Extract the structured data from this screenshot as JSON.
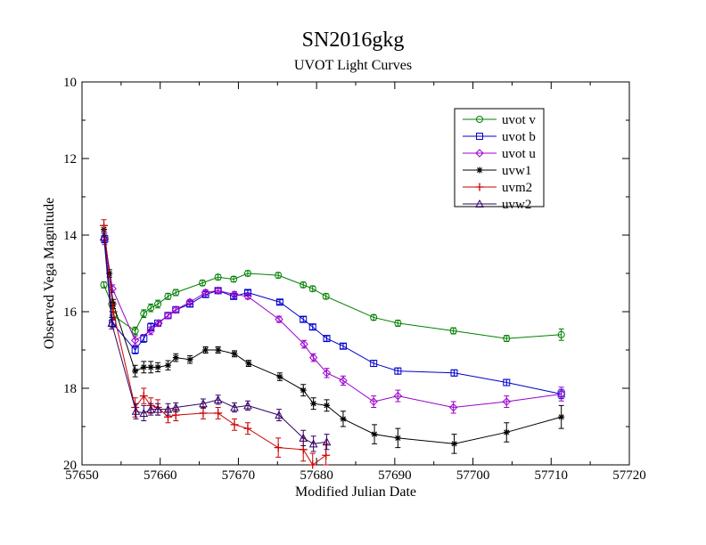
{
  "chart_data": {
    "type": "line",
    "title": "SN2016gkg",
    "subtitle": "UVOT Light Curves",
    "xlabel": "Modified Julian Date",
    "ylabel": "Observed Vega Magnitude",
    "xlim": [
      57650,
      57720
    ],
    "ylim": [
      20,
      10
    ],
    "y_inverted": true,
    "x_ticks": [
      "57650",
      "57660",
      "57670",
      "57680",
      "57690",
      "57700",
      "57710",
      "57720"
    ],
    "y_ticks": [
      "10",
      "12",
      "14",
      "16",
      "18",
      "20"
    ],
    "grid": false,
    "legend_position": "top-right",
    "series": [
      {
        "name": "uvot v",
        "color": "#008000",
        "marker": "circle",
        "points": [
          [
            57652.8,
            15.3
          ],
          [
            57653.8,
            15.8
          ],
          [
            57654.0,
            16.1
          ],
          [
            57656.8,
            16.5
          ],
          [
            57657.9,
            16.05
          ],
          [
            57658.8,
            15.9
          ],
          [
            57659.7,
            15.8
          ],
          [
            57661.0,
            15.6
          ],
          [
            57662.0,
            15.5
          ],
          [
            57665.4,
            15.25
          ],
          [
            57667.4,
            15.1
          ],
          [
            57669.4,
            15.15
          ],
          [
            57671.2,
            15.0
          ],
          [
            57675.1,
            15.05
          ],
          [
            57678.3,
            15.3
          ],
          [
            57679.5,
            15.4
          ],
          [
            57681.2,
            15.6
          ],
          [
            57687.3,
            16.15
          ],
          [
            57690.4,
            16.3
          ],
          [
            57697.5,
            16.5
          ],
          [
            57704.3,
            16.7
          ],
          [
            57711.3,
            16.6
          ]
        ],
        "err": [
          0.08,
          0.08,
          0.08,
          0.1,
          0.1,
          0.1,
          0.1,
          0.08,
          0.08,
          0.07,
          0.07,
          0.07,
          0.07,
          0.07,
          0.07,
          0.07,
          0.07,
          0.07,
          0.08,
          0.08,
          0.08,
          0.15
        ]
      },
      {
        "name": "uvot b",
        "color": "#0000cc",
        "marker": "square",
        "points": [
          [
            57652.9,
            14.1
          ],
          [
            57653.9,
            16.3
          ],
          [
            57656.8,
            17.0
          ],
          [
            57657.9,
            16.7
          ],
          [
            57658.8,
            16.4
          ],
          [
            57659.7,
            16.3
          ],
          [
            57661.0,
            16.1
          ],
          [
            57662.0,
            15.95
          ],
          [
            57663.8,
            15.8
          ],
          [
            57665.8,
            15.55
          ],
          [
            57667.4,
            15.45
          ],
          [
            57669.4,
            15.6
          ],
          [
            57671.2,
            15.5
          ],
          [
            57675.3,
            15.75
          ],
          [
            57678.3,
            16.2
          ],
          [
            57679.5,
            16.4
          ],
          [
            57681.3,
            16.7
          ],
          [
            57683.4,
            16.9
          ],
          [
            57687.3,
            17.35
          ],
          [
            57690.4,
            17.55
          ],
          [
            57697.6,
            17.6
          ],
          [
            57704.3,
            17.85
          ],
          [
            57711.3,
            18.15
          ]
        ],
        "err": [
          0.1,
          0.1,
          0.1,
          0.1,
          0.1,
          0.08,
          0.08,
          0.08,
          0.07,
          0.07,
          0.06,
          0.06,
          0.06,
          0.06,
          0.07,
          0.07,
          0.07,
          0.07,
          0.08,
          0.08,
          0.08,
          0.08,
          0.12
        ]
      },
      {
        "name": "uvot u",
        "color": "#9900cc",
        "marker": "diamond",
        "points": [
          [
            57652.9,
            14.1
          ],
          [
            57653.9,
            15.4
          ],
          [
            57656.8,
            16.75
          ],
          [
            57658.8,
            16.5
          ],
          [
            57659.8,
            16.3
          ],
          [
            57661.0,
            16.1
          ],
          [
            57662.0,
            15.95
          ],
          [
            57663.8,
            15.75
          ],
          [
            57665.8,
            15.5
          ],
          [
            57667.4,
            15.45
          ],
          [
            57669.5,
            15.55
          ],
          [
            57671.2,
            15.6
          ],
          [
            57675.2,
            16.2
          ],
          [
            57678.4,
            16.85
          ],
          [
            57679.6,
            17.2
          ],
          [
            57681.3,
            17.6
          ],
          [
            57683.4,
            17.8
          ],
          [
            57687.3,
            18.35
          ],
          [
            57690.4,
            18.2
          ],
          [
            57697.5,
            18.5
          ],
          [
            57704.3,
            18.35
          ],
          [
            57711.3,
            18.15
          ]
        ],
        "err": [
          0.15,
          0.1,
          0.12,
          0.1,
          0.08,
          0.08,
          0.08,
          0.07,
          0.07,
          0.07,
          0.07,
          0.07,
          0.08,
          0.1,
          0.1,
          0.12,
          0.12,
          0.15,
          0.15,
          0.15,
          0.15,
          0.18
        ]
      },
      {
        "name": "uvw1",
        "color": "#000000",
        "marker": "asterisk",
        "points": [
          [
            57652.8,
            13.85
          ],
          [
            57653.5,
            15.0
          ],
          [
            57654.0,
            15.8
          ],
          [
            57656.8,
            17.55
          ],
          [
            57657.9,
            17.45
          ],
          [
            57658.8,
            17.45
          ],
          [
            57659.7,
            17.45
          ],
          [
            57661.0,
            17.4
          ],
          [
            57662.0,
            17.2
          ],
          [
            57663.8,
            17.25
          ],
          [
            57665.8,
            17.0
          ],
          [
            57667.4,
            17.0
          ],
          [
            57669.5,
            17.1
          ],
          [
            57671.3,
            17.35
          ],
          [
            57675.3,
            17.7
          ],
          [
            57678.3,
            18.05
          ],
          [
            57679.6,
            18.4
          ],
          [
            57681.3,
            18.45
          ],
          [
            57683.4,
            18.8
          ],
          [
            57687.4,
            19.2
          ],
          [
            57690.4,
            19.3
          ],
          [
            57697.6,
            19.45
          ],
          [
            57704.3,
            19.15
          ],
          [
            57711.3,
            18.75
          ]
        ],
        "err": [
          0.1,
          0.1,
          0.12,
          0.15,
          0.15,
          0.15,
          0.12,
          0.12,
          0.1,
          0.1,
          0.08,
          0.08,
          0.08,
          0.08,
          0.1,
          0.15,
          0.15,
          0.15,
          0.2,
          0.25,
          0.25,
          0.25,
          0.25,
          0.3
        ]
      },
      {
        "name": "uvm2",
        "color": "#cc0000",
        "marker": "plus",
        "points": [
          [
            57652.8,
            13.75
          ],
          [
            57654.0,
            16.0
          ],
          [
            57656.8,
            18.5
          ],
          [
            57657.9,
            18.2
          ],
          [
            57658.8,
            18.45
          ],
          [
            57659.7,
            18.5
          ],
          [
            57661.0,
            18.75
          ],
          [
            57662.0,
            18.7
          ],
          [
            57665.5,
            18.65
          ],
          [
            57667.4,
            18.65
          ],
          [
            57669.5,
            18.95
          ],
          [
            57671.2,
            19.05
          ],
          [
            57675.1,
            19.55
          ],
          [
            57678.3,
            19.6
          ],
          [
            57679.5,
            20.0
          ],
          [
            57681.2,
            19.75
          ]
        ],
        "err": [
          0.15,
          0.2,
          0.25,
          0.2,
          0.2,
          0.2,
          0.15,
          0.15,
          0.15,
          0.15,
          0.15,
          0.15,
          0.25,
          0.3,
          0.3,
          0.3
        ]
      },
      {
        "name": "uvw2",
        "color": "#330066",
        "marker": "triangle",
        "points": [
          [
            57652.8,
            14.05
          ],
          [
            57653.8,
            16.3
          ],
          [
            57656.9,
            18.6
          ],
          [
            57657.9,
            18.65
          ],
          [
            57658.8,
            18.55
          ],
          [
            57659.7,
            18.55
          ],
          [
            57661.0,
            18.55
          ],
          [
            57662.0,
            18.5
          ],
          [
            57665.5,
            18.4
          ],
          [
            57667.4,
            18.3
          ],
          [
            57669.5,
            18.5
          ],
          [
            57671.2,
            18.45
          ],
          [
            57675.2,
            18.7
          ],
          [
            57678.3,
            19.3
          ],
          [
            57679.6,
            19.45
          ],
          [
            57681.3,
            19.4
          ]
        ],
        "err": [
          0.15,
          0.15,
          0.2,
          0.2,
          0.15,
          0.15,
          0.15,
          0.12,
          0.12,
          0.12,
          0.12,
          0.12,
          0.15,
          0.2,
          0.2,
          0.2
        ]
      }
    ]
  }
}
